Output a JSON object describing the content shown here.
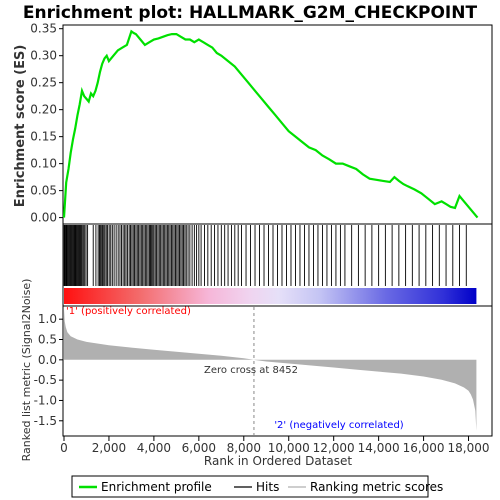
{
  "chart_data": {
    "type": "line",
    "title": "Enrichment plot: HALLMARK_G2M_CHECKPOINT",
    "top_panel": {
      "ylabel": "Enrichment score (ES)",
      "ylim": [
        -0.01,
        0.355
      ],
      "yticks": [
        0.0,
        0.05,
        0.1,
        0.15,
        0.2,
        0.25,
        0.3,
        0.35
      ],
      "ytick_labels": [
        "0.00",
        "0.05",
        "0.10",
        "0.15",
        "0.20",
        "0.25",
        "0.30",
        "0.35"
      ],
      "series": [
        {
          "name": "Enrichment profile",
          "color": "#00e000",
          "x": [
            0,
            100,
            200,
            300,
            400,
            500,
            600,
            700,
            800,
            900,
            1000,
            1100,
            1200,
            1300,
            1400,
            1500,
            1600,
            1700,
            1800,
            1900,
            2000,
            2200,
            2400,
            2600,
            2800,
            3000,
            3100,
            3200,
            3400,
            3600,
            3800,
            4000,
            4200,
            4400,
            4600,
            4800,
            5000,
            5200,
            5400,
            5600,
            5800,
            6000,
            6200,
            6400,
            6600,
            6800,
            7000,
            7300,
            7600,
            7900,
            8200,
            8500,
            8800,
            9100,
            9400,
            9700,
            10000,
            10300,
            10600,
            10900,
            11200,
            11500,
            11800,
            12100,
            12400,
            12700,
            13000,
            13300,
            13600,
            13900,
            14200,
            14500,
            14700,
            14900,
            15100,
            15300,
            15600,
            15900,
            16200,
            16500,
            16800,
            17000,
            17200,
            17400,
            17600,
            17800,
            18000,
            18200,
            18400
          ],
          "y": [
            0.0,
            0.065,
            0.09,
            0.12,
            0.145,
            0.165,
            0.19,
            0.21,
            0.235,
            0.225,
            0.22,
            0.215,
            0.23,
            0.225,
            0.235,
            0.25,
            0.27,
            0.285,
            0.295,
            0.3,
            0.29,
            0.3,
            0.31,
            0.315,
            0.32,
            0.345,
            0.342,
            0.34,
            0.33,
            0.32,
            0.325,
            0.33,
            0.332,
            0.335,
            0.338,
            0.34,
            0.34,
            0.335,
            0.33,
            0.33,
            0.325,
            0.33,
            0.325,
            0.32,
            0.315,
            0.305,
            0.3,
            0.29,
            0.28,
            0.265,
            0.25,
            0.235,
            0.22,
            0.205,
            0.19,
            0.175,
            0.16,
            0.15,
            0.14,
            0.13,
            0.125,
            0.115,
            0.108,
            0.1,
            0.1,
            0.095,
            0.09,
            0.08,
            0.072,
            0.07,
            0.068,
            0.066,
            0.075,
            0.068,
            0.062,
            0.058,
            0.052,
            0.045,
            0.035,
            0.025,
            0.03,
            0.025,
            0.02,
            0.018,
            0.04,
            0.03,
            0.02,
            0.01,
            0.0
          ]
        }
      ]
    },
    "hits_panel": {
      "legend_label": "Hits",
      "hit_positions": [
        5,
        30,
        60,
        95,
        130,
        170,
        210,
        250,
        290,
        330,
        370,
        410,
        450,
        490,
        530,
        570,
        610,
        650,
        690,
        730,
        770,
        810,
        860,
        920,
        980,
        1050,
        1300,
        1420,
        1520,
        1580,
        1630,
        1680,
        1720,
        1770,
        1820,
        1880,
        1940,
        2010,
        2080,
        2150,
        2230,
        2320,
        2410,
        2490,
        2560,
        2630,
        2700,
        2760,
        2830,
        2900,
        2960,
        3020,
        3080,
        3140,
        3200,
        3260,
        3320,
        3380,
        3440,
        3500,
        3560,
        3620,
        3680,
        3740,
        3800,
        3850,
        3900,
        3950,
        4000,
        4060,
        4120,
        4180,
        4240,
        4300,
        4360,
        4420,
        4480,
        4540,
        4600,
        4660,
        4720,
        4780,
        4840,
        4900,
        4960,
        5020,
        5080,
        5140,
        5200,
        5260,
        5320,
        5380,
        5440,
        5520,
        5600,
        5700,
        5800,
        5900,
        6000,
        6100,
        6250,
        6400,
        6550,
        6700,
        6850,
        7000,
        7150,
        7300,
        7450,
        7600,
        7750,
        7900,
        8100,
        8300,
        8500,
        8700,
        8900,
        9100,
        9300,
        9500,
        9700,
        9900,
        10100,
        10300,
        10500,
        10700,
        10900,
        11100,
        11300,
        11500,
        11700,
        11900,
        12100,
        12300,
        12500,
        12800,
        13100,
        13400,
        13700,
        14000,
        14300,
        14600,
        14900,
        15200,
        15500,
        15800,
        16100,
        16400,
        16700,
        17000,
        17300,
        17600,
        17900
      ],
      "gradient_left_color": "#ff0000",
      "gradient_right_color": "#0000ff"
    },
    "bottom_panel": {
      "ylabel": "Ranked list metric (Signal2Noise)",
      "xlabel": "Rank in Ordered Dataset",
      "ylim": [
        -1.85,
        1.3
      ],
      "yticks": [
        -1.5,
        -1.0,
        -0.5,
        0.0,
        0.5,
        1.0
      ],
      "ytick_labels": [
        "-1.5",
        "-1.0",
        "-0.5",
        "0.0",
        "0.5",
        "1.0"
      ],
      "metric_x": [
        0,
        30,
        80,
        150,
        300,
        600,
        1000,
        2000,
        3000,
        4000,
        5000,
        6000,
        7000,
        8000,
        8452,
        9000,
        10000,
        11000,
        12000,
        13000,
        14000,
        15000,
        16000,
        16800,
        17400,
        17800,
        18000,
        18100,
        18200,
        18300,
        18350
      ],
      "metric_y": [
        1.25,
        0.95,
        0.8,
        0.68,
        0.58,
        0.5,
        0.44,
        0.36,
        0.3,
        0.25,
        0.2,
        0.15,
        0.1,
        0.04,
        0.0,
        -0.04,
        -0.09,
        -0.14,
        -0.19,
        -0.24,
        -0.29,
        -0.34,
        -0.41,
        -0.49,
        -0.58,
        -0.68,
        -0.76,
        -0.85,
        -0.98,
        -1.25,
        -1.75
      ],
      "metric_color": "#b0b0b0",
      "zero_cross_text": "Zero cross at 8452",
      "zero_cross_rank": 8452,
      "pos_label": "'1' (positively correlated)",
      "pos_color": "#ff0000",
      "neg_label": "'2' (negatively correlated)",
      "neg_color": "#0000ff"
    },
    "xlim": [
      0,
      19000
    ],
    "xticks": [
      0,
      2000,
      4000,
      6000,
      8000,
      10000,
      12000,
      14000,
      16000,
      18000
    ],
    "xtick_labels": [
      "0",
      "2,000",
      "4,000",
      "6,000",
      "8,000",
      "10,000",
      "12,000",
      "14,000",
      "16,000",
      "18,000"
    ],
    "legend": {
      "placement": "bottom",
      "items": [
        "Enrichment profile",
        "Hits",
        "Ranking metric scores"
      ]
    }
  }
}
